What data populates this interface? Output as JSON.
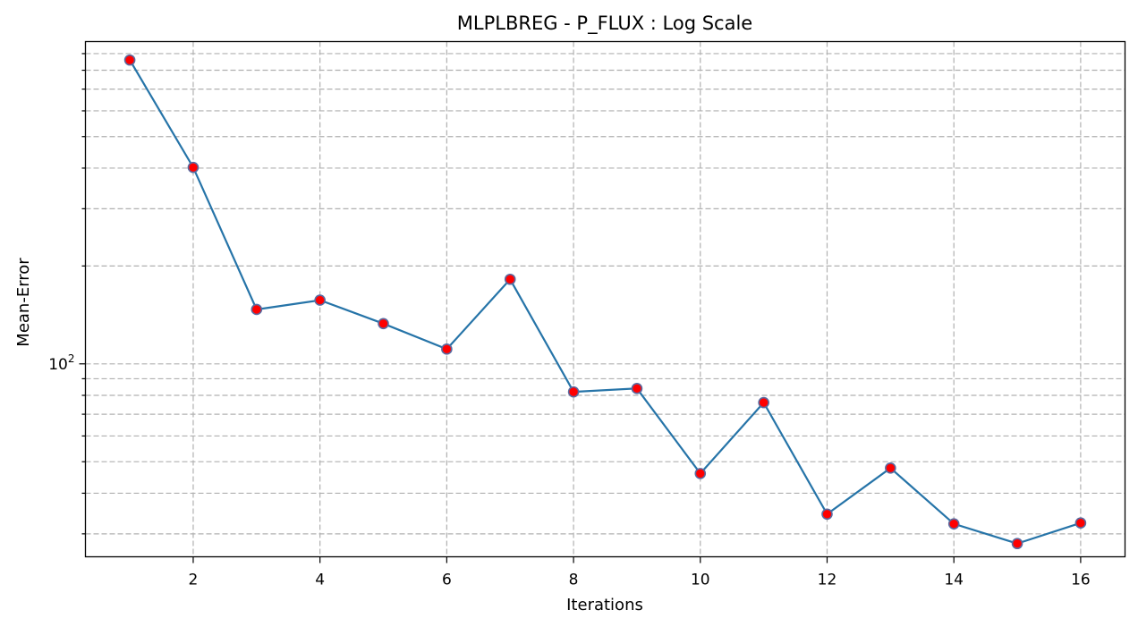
{
  "chart_data": {
    "type": "line",
    "title": "MLPLBREG - P_FLUX : Log Scale",
    "xlabel": "Iterations",
    "ylabel": "Mean-Error",
    "y_scale": "log",
    "xlim": [
      0.3,
      16.7
    ],
    "ylim": [
      25.5,
      980
    ],
    "x_ticks": [
      2,
      4,
      6,
      8,
      10,
      12,
      14,
      16
    ],
    "y_major_ticks": [
      {
        "value": 100,
        "base": "10",
        "exp": "2"
      }
    ],
    "y_minor_ticks": [
      30,
      40,
      50,
      60,
      70,
      80,
      90,
      200,
      300,
      400,
      500,
      600,
      700,
      800,
      900
    ],
    "grid": true,
    "series": [
      {
        "x": [
          1,
          2,
          3,
          4,
          5,
          6,
          7,
          8,
          9,
          10,
          11,
          12,
          13,
          14,
          15,
          16
        ],
        "y": [
          860,
          402,
          147,
          157,
          133,
          111,
          182,
          82,
          84,
          46,
          76,
          34.5,
          47.8,
          32.2,
          28.0,
          32.4
        ],
        "line_color": "#2674a8",
        "marker_fill": "#ff0000",
        "marker_edge": "#5a6aa0"
      }
    ]
  }
}
